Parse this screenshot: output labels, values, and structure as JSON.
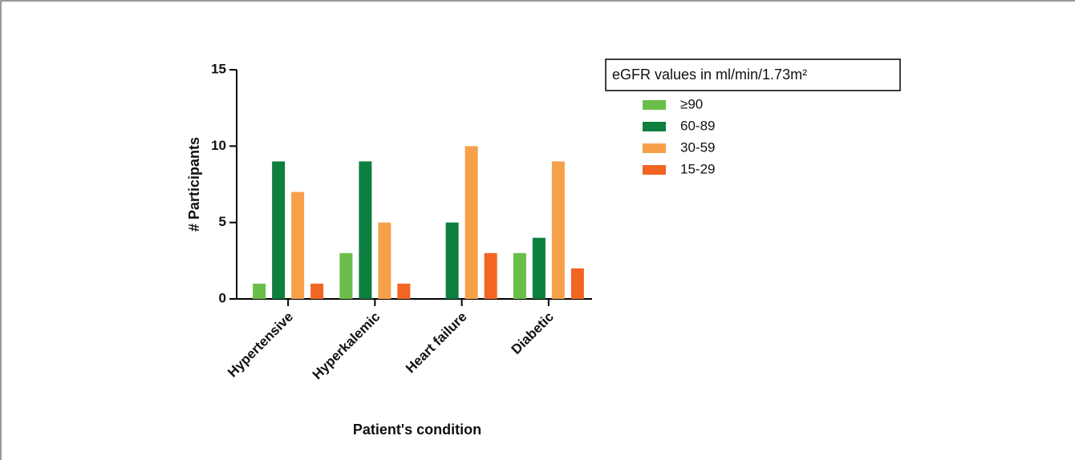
{
  "chart_data": {
    "type": "bar",
    "categories": [
      "Hypertensive",
      "Hyperkalemic",
      "Heart failure",
      "Diabetic"
    ],
    "series": [
      {
        "name": "≥90",
        "color": "#6abf4b",
        "values": [
          1,
          3,
          0,
          3
        ]
      },
      {
        "name": "60-89",
        "color": "#0d7f3f",
        "values": [
          9,
          9,
          5,
          4
        ]
      },
      {
        "name": "30-59",
        "color": "#f7a04a",
        "values": [
          7,
          5,
          10,
          9
        ]
      },
      {
        "name": "15-29",
        "color": "#f26522",
        "values": [
          1,
          1,
          3,
          2
        ]
      }
    ],
    "legend_title": "eGFR values in ml/min/1.73m²",
    "xlabel": "Patient's condition",
    "ylabel": "# Participants",
    "ylim": [
      0,
      15
    ],
    "yticks": [
      0,
      5,
      10,
      15
    ]
  }
}
